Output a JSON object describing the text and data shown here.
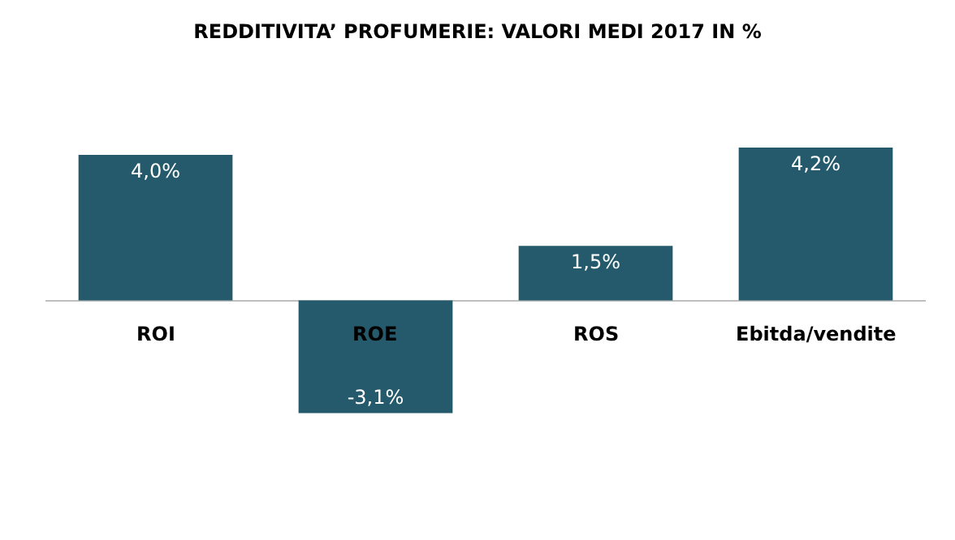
{
  "chart_data": {
    "type": "bar",
    "title": "REDDITIVITA’ PROFUMERIE: VALORI MEDI 2017 IN %",
    "categories": [
      "ROI",
      "ROE",
      "ROS",
      "Ebitda/vendite"
    ],
    "values": [
      4.0,
      -3.1,
      1.5,
      4.2
    ],
    "value_labels": [
      "4,0%",
      "-3,1%",
      "1,5%",
      "4,2%"
    ],
    "color": "#245a6b"
  }
}
